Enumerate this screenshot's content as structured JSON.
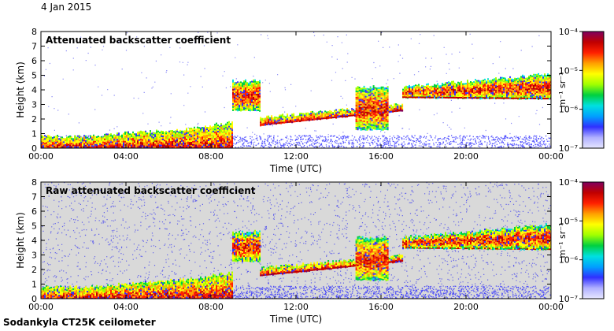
{
  "page": {
    "date": "4 Jan 2015",
    "footer": "Sodankyla CT25K ceilometer"
  },
  "colors": {
    "background": "#ffffff",
    "panel_bg_top": "#ffffff",
    "panel_bg_bottom": "#d9d9d9",
    "noise": "#3a3af0",
    "colormap": [
      "#e6e6ff",
      "#b0b0ff",
      "#3030ff",
      "#00a0ff",
      "#00e0e0",
      "#00d040",
      "#a0ff00",
      "#ffff00",
      "#ffa000",
      "#ff2000",
      "#c00000",
      "#800060"
    ]
  },
  "chart_data": [
    {
      "type": "heatmap",
      "title": "Attenuated backscatter coefficient",
      "xlabel": "Time (UTC)",
      "ylabel": "Height (km)",
      "xlim": [
        0,
        24
      ],
      "ylim": [
        0,
        8
      ],
      "xticks": [
        0,
        4,
        8,
        12,
        16,
        20,
        24
      ],
      "xtick_labels": [
        "00:00",
        "04:00",
        "08:00",
        "12:00",
        "16:00",
        "20:00",
        "00:00"
      ],
      "yticks": [
        0,
        1,
        2,
        3,
        4,
        5,
        6,
        7,
        8
      ],
      "ytick_labels": [
        "0",
        "1",
        "2",
        "3",
        "4",
        "5",
        "6",
        "7",
        "8"
      ],
      "colorbar": {
        "label": "m⁻¹ sr⁻¹",
        "scale": "log",
        "range": [
          1e-07,
          0.0001
        ],
        "tick_labels": [
          "10⁻⁴",
          "10⁻⁵",
          "10⁻⁶",
          "10⁻⁷"
        ]
      },
      "features": [
        {
          "name": "boundary layer",
          "t_start": 0,
          "t_end": 9,
          "h_bottom": 0,
          "h_top": [
            0.8,
            0.8,
            1.1,
            1.3,
            1.8
          ],
          "level": "high"
        },
        {
          "name": "cloud",
          "t_start": 9,
          "t_end": 10.3,
          "h_bottom": 2.6,
          "h_top": 4.6,
          "level": "mid"
        },
        {
          "name": "cloud base layer",
          "t_start": 10.3,
          "t_end": 17,
          "h_bottom": [
            1.6,
            2.6
          ],
          "h_top": [
            2.1,
            3.0
          ],
          "level": "high"
        },
        {
          "name": "cloud",
          "t_start": 14.8,
          "t_end": 16.3,
          "h_bottom": 1.3,
          "h_top": 4.2,
          "level": "mid"
        },
        {
          "name": "upper cloud layer",
          "t_start": 17,
          "t_end": 24,
          "h_bottom": [
            3.5,
            3.4
          ],
          "h_top": [
            4.2,
            5.1
          ],
          "level": "mid"
        }
      ]
    },
    {
      "type": "heatmap",
      "title": "Raw attenuated backscatter coefficient",
      "xlabel": "Time (UTC)",
      "ylabel": "Height (km)",
      "xlim": [
        0,
        24
      ],
      "ylim": [
        0,
        8
      ],
      "xticks": [
        0,
        4,
        8,
        12,
        16,
        20,
        24
      ],
      "xtick_labels": [
        "00:00",
        "04:00",
        "08:00",
        "12:00",
        "16:00",
        "20:00",
        "00:00"
      ],
      "yticks": [
        0,
        1,
        2,
        3,
        4,
        5,
        6,
        7,
        8
      ],
      "ytick_labels": [
        "0",
        "1",
        "2",
        "3",
        "4",
        "5",
        "6",
        "7",
        "8"
      ],
      "colorbar": {
        "label": "m⁻¹ sr⁻¹",
        "scale": "log",
        "range": [
          1e-07,
          0.0001
        ],
        "tick_labels": [
          "10⁻⁴",
          "10⁻⁵",
          "10⁻⁶",
          "10⁻⁷"
        ]
      },
      "features": [
        {
          "name": "boundary layer",
          "t_start": 0,
          "t_end": 9,
          "h_bottom": 0,
          "h_top": [
            0.8,
            0.8,
            1.1,
            1.3,
            1.8
          ],
          "level": "high"
        },
        {
          "name": "cloud",
          "t_start": 9,
          "t_end": 10.3,
          "h_bottom": 2.6,
          "h_top": 4.6,
          "level": "mid"
        },
        {
          "name": "cloud base layer",
          "t_start": 10.3,
          "t_end": 17,
          "h_bottom": [
            1.6,
            2.6
          ],
          "h_top": [
            2.1,
            3.0
          ],
          "level": "high"
        },
        {
          "name": "cloud",
          "t_start": 14.8,
          "t_end": 16.3,
          "h_bottom": 1.3,
          "h_top": 4.2,
          "level": "mid"
        },
        {
          "name": "upper cloud layer",
          "t_start": 17,
          "t_end": 24,
          "h_bottom": [
            3.5,
            3.4
          ],
          "h_top": [
            4.2,
            5.1
          ],
          "level": "mid"
        }
      ]
    }
  ]
}
